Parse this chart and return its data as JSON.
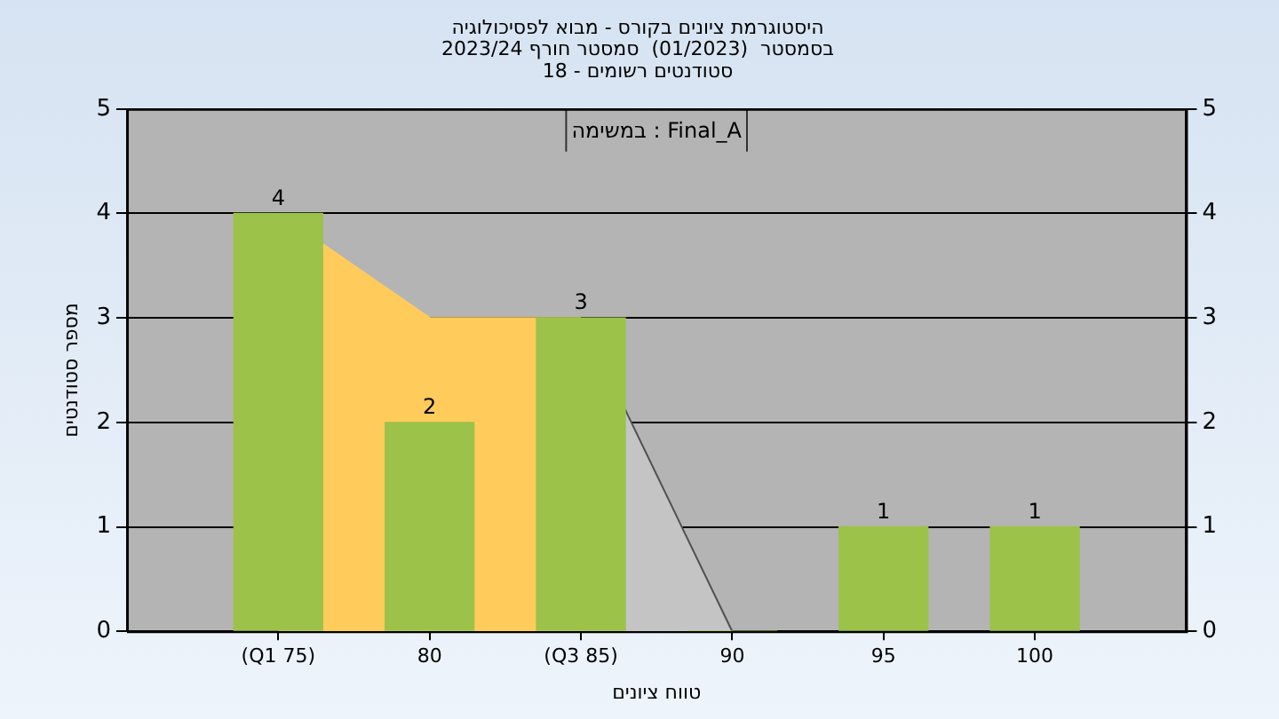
{
  "chart_data": {
    "type": "bar",
    "title": "היסטוגרמת ציונים בקורס - מבוא לפסיכולוגיה",
    "subtitle": "בסמסטר  (01/2023)  סמסטר חורף 2023/24",
    "xlabel": "טווח ציונים",
    "ylabel": "מספר סטודנטים",
    "annotations": [
      "סטודנטים רשומים - 18",
      "במשימה : Final_A"
    ],
    "categories": [
      "(Q1 75)",
      "80",
      "(Q3 85)",
      "90",
      "95",
      "100"
    ],
    "series": [
      {
        "color": "#9cc24a",
        "values": [
          4,
          2,
          3,
          0,
          1,
          1
        ],
        "value_labels": [
          "4",
          "2",
          "3",
          null,
          "1",
          "1"
        ]
      },
      {
        "type": "area",
        "color": "#ffcc5c",
        "values": [
          4,
          3,
          3,
          null,
          null,
          null
        ]
      },
      {
        "type": "area",
        "color": "#c4c4c4",
        "values": [
          null,
          null,
          3,
          0,
          null,
          null
        ]
      }
    ],
    "ylim": [
      0,
      5
    ],
    "yticks": [
      0,
      1,
      2,
      3,
      4,
      5
    ],
    "y2lim": [
      0,
      5
    ],
    "y2ticks": [
      0,
      1,
      2,
      3,
      4,
      5
    ],
    "grid": "y",
    "legend": false
  }
}
